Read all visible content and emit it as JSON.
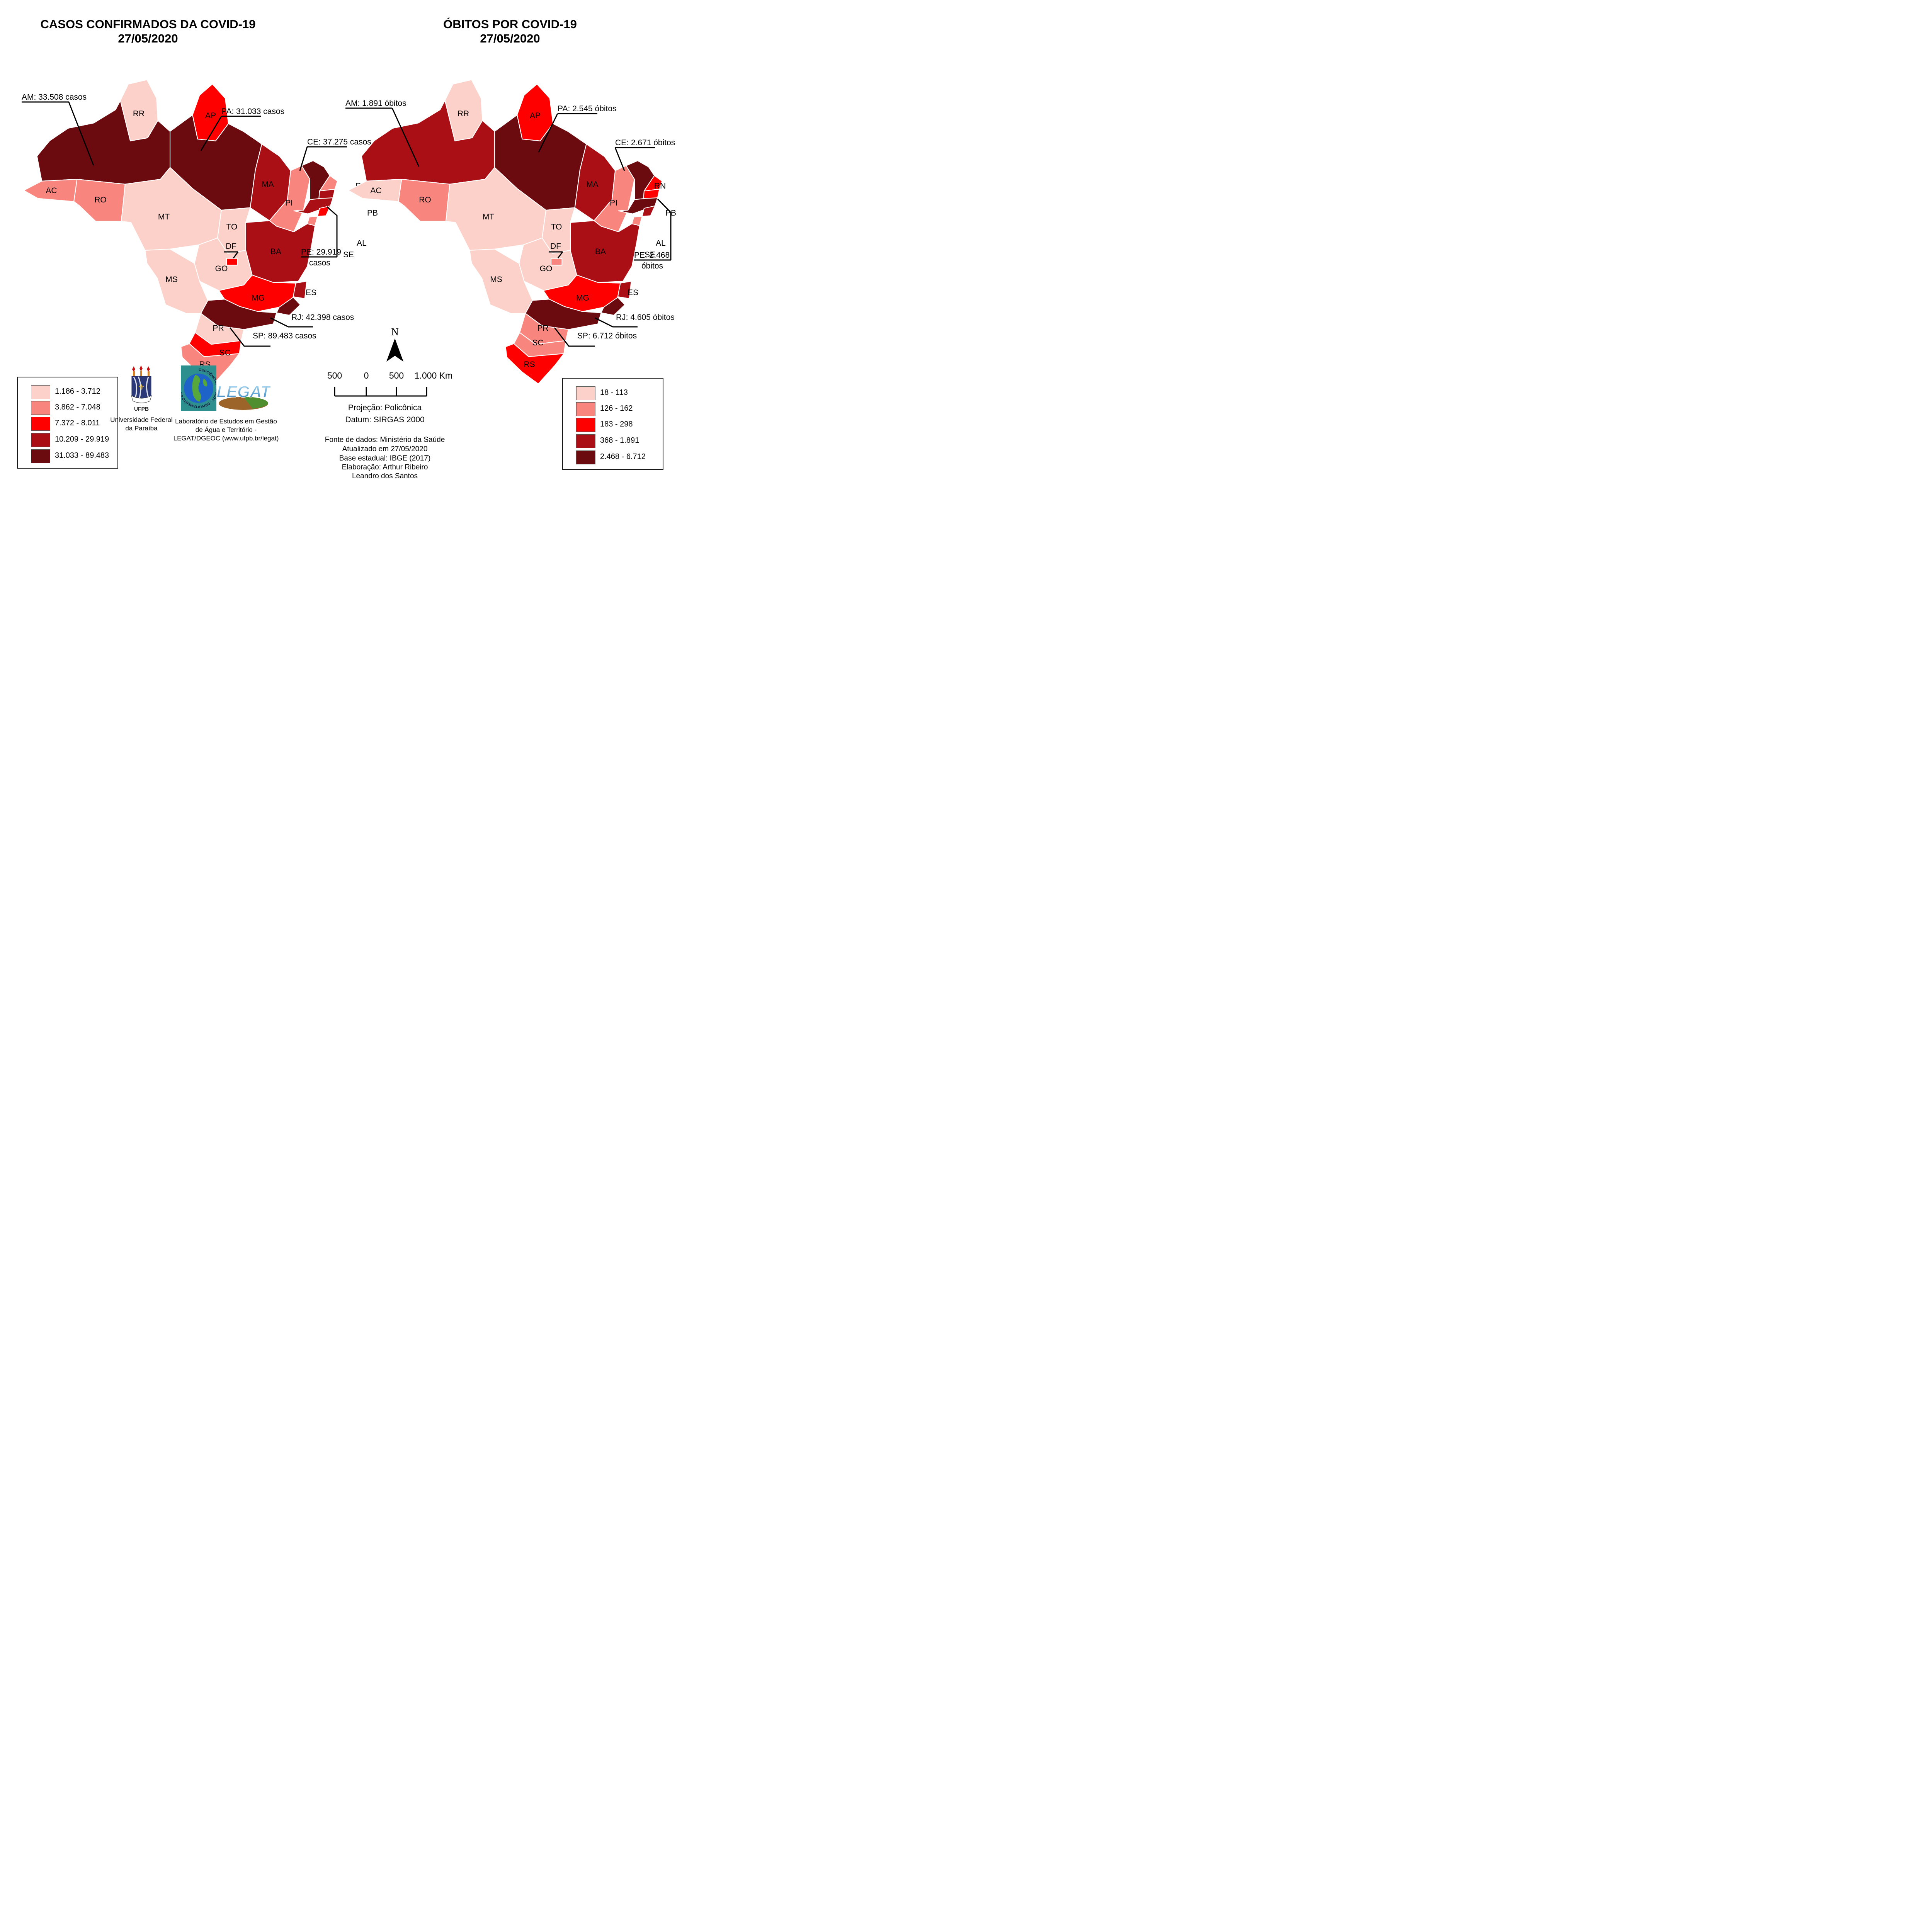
{
  "titles": {
    "cases_line1": "CASOS CONFIRMADOS DA COVID-19",
    "cases_line2": "27/05/2020",
    "deaths_line1": "ÓBITOS POR COVID-19",
    "deaths_line2": "27/05/2020"
  },
  "palette": {
    "c1": "#fcd1ca",
    "c2": "#f9867e",
    "c3": "#fe0000",
    "c4": "#a90f15",
    "c5": "#6b0b10"
  },
  "legend": {
    "cases": [
      "1.186 - 3.712",
      "3.862 - 7.048",
      "7.372 - 8.011",
      "10.209 - 29.919",
      "31.033 - 89.483"
    ],
    "deaths": [
      "18 - 113",
      "126 - 162",
      "183 - 298",
      "368 - 1.891",
      "2.468 - 6.712"
    ]
  },
  "states": [
    {
      "code": "RR",
      "cases_class": 1,
      "deaths_class": 1
    },
    {
      "code": "AP",
      "cases_class": 3,
      "deaths_class": 3
    },
    {
      "code": "AM",
      "cases_class": 5,
      "deaths_class": 4
    },
    {
      "code": "PA",
      "cases_class": 5,
      "deaths_class": 5
    },
    {
      "code": "AC",
      "cases_class": 2,
      "deaths_class": 1
    },
    {
      "code": "RO",
      "cases_class": 2,
      "deaths_class": 2
    },
    {
      "code": "MT",
      "cases_class": 1,
      "deaths_class": 1
    },
    {
      "code": "TO",
      "cases_class": 1,
      "deaths_class": 1
    },
    {
      "code": "MA",
      "cases_class": 4,
      "deaths_class": 4
    },
    {
      "code": "PI",
      "cases_class": 2,
      "deaths_class": 2
    },
    {
      "code": "CE",
      "cases_class": 5,
      "deaths_class": 5
    },
    {
      "code": "RN",
      "cases_class": 2,
      "deaths_class": 3
    },
    {
      "code": "PB",
      "cases_class": 4,
      "deaths_class": 3
    },
    {
      "code": "PE",
      "cases_class": 4,
      "deaths_class": 5
    },
    {
      "code": "AL",
      "cases_class": 3,
      "deaths_class": 4
    },
    {
      "code": "SE",
      "cases_class": 2,
      "deaths_class": 2
    },
    {
      "code": "BA",
      "cases_class": 4,
      "deaths_class": 4
    },
    {
      "code": "GO",
      "cases_class": 1,
      "deaths_class": 1
    },
    {
      "code": "DF",
      "cases_class": 3,
      "deaths_class": 2
    },
    {
      "code": "MG",
      "cases_class": 3,
      "deaths_class": 3
    },
    {
      "code": "MS",
      "cases_class": 1,
      "deaths_class": 1
    },
    {
      "code": "ES",
      "cases_class": 4,
      "deaths_class": 4
    },
    {
      "code": "RJ",
      "cases_class": 5,
      "deaths_class": 5
    },
    {
      "code": "SP",
      "cases_class": 5,
      "deaths_class": 5
    },
    {
      "code": "PR",
      "cases_class": 1,
      "deaths_class": 2
    },
    {
      "code": "SC",
      "cases_class": 3,
      "deaths_class": 2
    },
    {
      "code": "RS",
      "cases_class": 2,
      "deaths_class": 3
    }
  ],
  "annotations": {
    "cases": {
      "AM": "AM: 33.508 casos",
      "PA": "PA: 31.033 casos",
      "CE": "CE: 37.275 casos",
      "PE1": "PE: 29.919",
      "PE2": "casos",
      "RJ": "RJ: 42.398 casos",
      "SP": "SP: 89.483 casos",
      "DF": "DF"
    },
    "deaths": {
      "AM": "AM: 1.891 óbitos",
      "PA": "PA: 2.545 óbitos",
      "CE": "CE: 2.671 óbitos",
      "PE1": "PE: 2.468",
      "PE2": "óbitos",
      "RJ": "RJ: 4.605 óbitos",
      "SP": "SP: 6.712 óbitos",
      "DF": "DF"
    }
  },
  "scalebar": {
    "ticks": [
      "500",
      "0",
      "500",
      "1.000"
    ],
    "unit": "Km"
  },
  "compass": {
    "label": "N"
  },
  "credits": {
    "projection": "Projeção: Policônica",
    "datum": "Datum: SIRGAS 2000",
    "source": "Fonte de dados: Ministério da Saúde",
    "updated": "Atualizado em 27/05/2020",
    "base": "Base estadual: IBGE (2017)",
    "elaboration": "Elaboração: Arthur Ribeiro",
    "author2": "Leandro dos Santos"
  },
  "logos": {
    "ufpb_caption1": "Universidade Federal",
    "ufpb_caption2": "da Paraíba",
    "ufpb_label": "UFPB",
    "dgeoc_ring_text": "GEOCIÊNCIAS - DGEOC - DEPARTAMENTO DE",
    "legat_text": "LEGAT",
    "legat_caption1": "Laboratório de Estudos em Gestão",
    "legat_caption2": "de Água e Território -",
    "legat_caption3": "LEGAT/DGEOC (www.ufpb.br/legat)"
  }
}
